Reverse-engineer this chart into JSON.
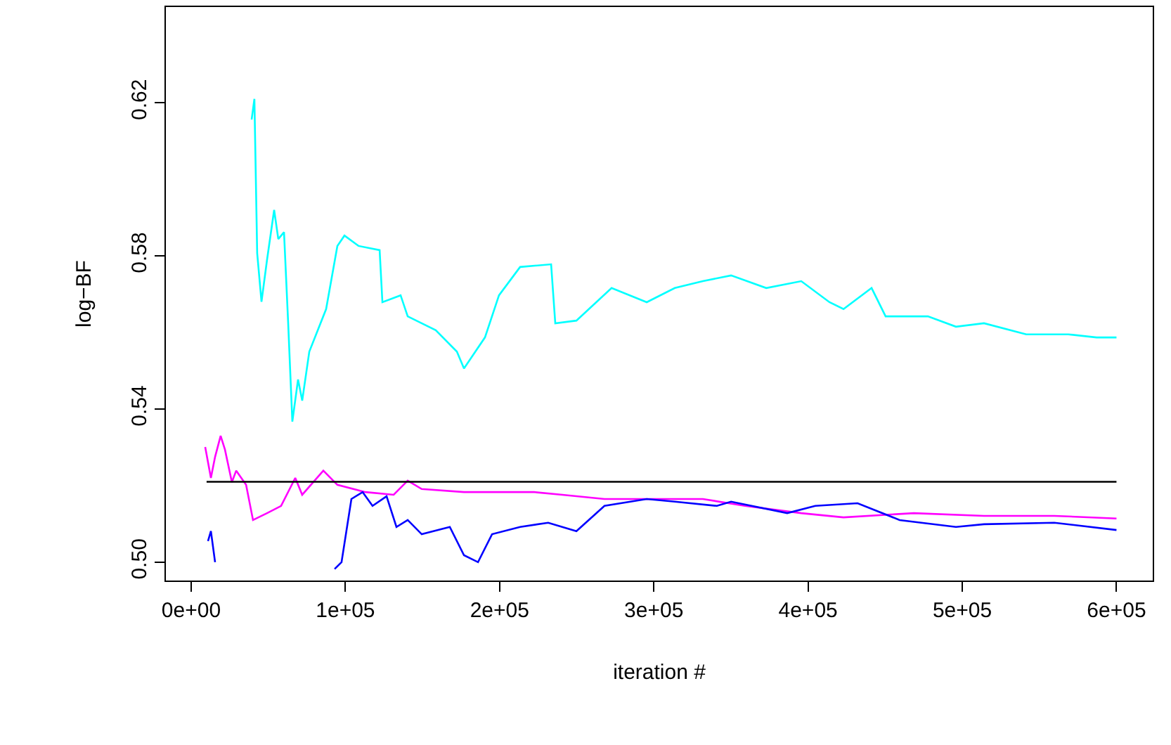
{
  "chart_data": {
    "type": "line",
    "xlabel": "iteration #",
    "ylabel": "log−BF",
    "xlim": [
      -16400,
      623500
    ],
    "ylim": [
      0.4952,
      0.645
    ],
    "xticks": [
      {
        "value": 0,
        "label": "0e+00"
      },
      {
        "value": 100000,
        "label": "1e+05"
      },
      {
        "value": 200000,
        "label": "2e+05"
      },
      {
        "value": 300000,
        "label": "3e+05"
      },
      {
        "value": 400000,
        "label": "4e+05"
      },
      {
        "value": 500000,
        "label": "5e+05"
      },
      {
        "value": 600000,
        "label": "6e+05"
      }
    ],
    "yticks": [
      {
        "value": 0.5,
        "label": "0.50"
      },
      {
        "value": 0.54,
        "label": "0.54"
      },
      {
        "value": 0.58,
        "label": "0.58"
      },
      {
        "value": 0.62,
        "label": "0.62"
      }
    ],
    "marker": "none",
    "line_style": "solid",
    "series": [
      {
        "color": "#00ffff",
        "x": [
          39200,
          41000,
          42800,
          45600,
          49200,
          53800,
          56500,
          60200,
          62900,
          65600,
          69300,
          72000,
          76600,
          87500,
          94800,
          99400,
          108500,
          122200,
          124000,
          135800,
          140400,
          158600,
          172300,
          176900,
          190500,
          199600,
          213300,
          233400,
          236100,
          249800,
          272600,
          295400,
          313600,
          331800,
          350100,
          372900,
          395600,
          413900,
          423000,
          441200,
          450300,
          477700,
          495900,
          514100,
          541500,
          568800,
          587100,
          600000
        ],
        "values": [
          0.6156,
          0.621,
          0.5807,
          0.568,
          0.579,
          0.592,
          0.5844,
          0.5862,
          0.5624,
          0.5367,
          0.5477,
          0.5422,
          0.555,
          0.5661,
          0.5826,
          0.5853,
          0.5826,
          0.5815,
          0.5679,
          0.5697,
          0.5642,
          0.5606,
          0.555,
          0.5506,
          0.5587,
          0.5697,
          0.5771,
          0.5778,
          0.5624,
          0.5631,
          0.5716,
          0.5679,
          0.5716,
          0.5734,
          0.5749,
          0.5716,
          0.5734,
          0.5679,
          0.5661,
          0.5716,
          0.5642,
          0.5642,
          0.5615,
          0.5624,
          0.5595,
          0.5595,
          0.5587,
          0.5587
        ]
      },
      {
        "color": "#ff00ff",
        "x": [
          9100,
          12800,
          15500,
          19100,
          21900,
          26400,
          29200,
          35600,
          40100,
          49200,
          58300,
          67500,
          72000,
          85700,
          94800,
          113000,
          131300,
          140400,
          149500,
          176900,
          222400,
          240700,
          268000,
          331800,
          359200,
          395600,
          423000,
          468600,
          514100,
          559700,
          600000
        ],
        "values": [
          0.5301,
          0.522,
          0.5275,
          0.533,
          0.5294,
          0.5209,
          0.5239,
          0.5202,
          0.511,
          0.5128,
          0.5147,
          0.522,
          0.5176,
          0.5239,
          0.5202,
          0.5183,
          0.5176,
          0.5213,
          0.5191,
          0.5183,
          0.5183,
          0.5176,
          0.5165,
          0.5165,
          0.5147,
          0.5128,
          0.5117,
          0.5128,
          0.5121,
          0.5121,
          0.5114
        ]
      },
      {
        "color": "#0000ff",
        "x": [
          10900,
          12800,
          15500,
          17300,
          93000,
          97500,
          103900,
          111200,
          117600,
          126700,
          133100,
          140400,
          149500,
          167700,
          176900,
          186000,
          195100,
          213300,
          231500,
          249800,
          268000,
          295400,
          313600,
          340900,
          350100,
          386500,
          404700,
          432100,
          459400,
          495900,
          514100,
          559700,
          600000
        ],
        "values": [
          0.5055,
          0.5081,
          0.5,
          null,
          0.4982,
          0.5,
          0.5165,
          0.5183,
          0.5147,
          0.5172,
          0.5092,
          0.511,
          0.5073,
          0.5092,
          0.5018,
          0.5,
          0.5073,
          0.5092,
          0.5103,
          0.5081,
          0.5147,
          0.5165,
          0.5158,
          0.5147,
          0.5158,
          0.5128,
          0.5147,
          0.5154,
          0.511,
          0.5092,
          0.5099,
          0.5103,
          0.5084
        ]
      },
      {
        "color": "#000000",
        "x": [
          10000,
          600000
        ],
        "values": [
          0.521,
          0.521
        ]
      }
    ]
  }
}
